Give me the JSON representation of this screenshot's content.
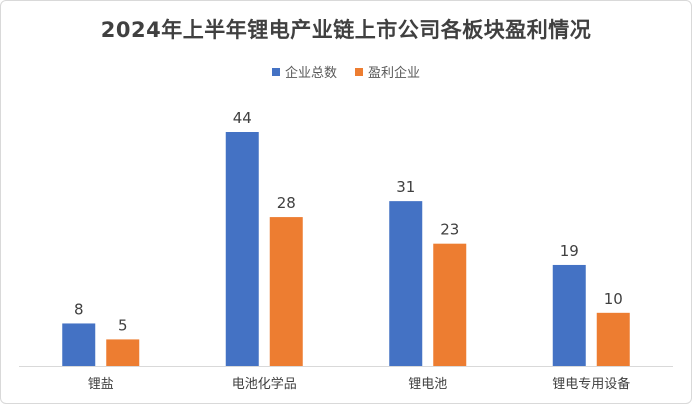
{
  "chart_data": {
    "type": "bar",
    "title": "2024年上半年锂电产业链上市公司各板块盈利情况",
    "categories": [
      "锂盐",
      "电池化学品",
      "锂电池",
      "锂电专用设备"
    ],
    "series": [
      {
        "name": "企业总数",
        "values": [
          8,
          44,
          31,
          19
        ],
        "color": "#4472C4"
      },
      {
        "name": "盈利企业",
        "values": [
          5,
          28,
          23,
          10
        ],
        "color": "#ED7D31"
      }
    ],
    "ylim": [
      0,
      50
    ],
    "grid": false,
    "legend_position": "top"
  }
}
